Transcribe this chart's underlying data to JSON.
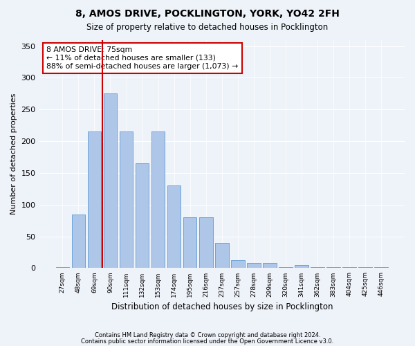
{
  "title1": "8, AMOS DRIVE, POCKLINGTON, YORK, YO42 2FH",
  "title2": "Size of property relative to detached houses in Pocklington",
  "xlabel": "Distribution of detached houses by size in Pocklington",
  "ylabel": "Number of detached properties",
  "categories": [
    "27sqm",
    "48sqm",
    "69sqm",
    "90sqm",
    "111sqm",
    "132sqm",
    "153sqm",
    "174sqm",
    "195sqm",
    "216sqm",
    "237sqm",
    "257sqm",
    "278sqm",
    "299sqm",
    "320sqm",
    "341sqm",
    "362sqm",
    "383sqm",
    "404sqm",
    "425sqm",
    "446sqm"
  ],
  "values": [
    2,
    85,
    215,
    275,
    215,
    165,
    215,
    130,
    80,
    80,
    40,
    12,
    8,
    8,
    2,
    5,
    2,
    2,
    2,
    2,
    2
  ],
  "bar_color": "#aec6e8",
  "bar_edge_color": "#5b9bd5",
  "vline_x": 2.5,
  "vline_color": "#cc0000",
  "annotation_text": "8 AMOS DRIVE: 75sqm\n← 11% of detached houses are smaller (133)\n88% of semi-detached houses are larger (1,073) →",
  "annotation_box_color": "#ffffff",
  "annotation_box_edge": "#cc0000",
  "background_color": "#eef2f9",
  "footer1": "Contains HM Land Registry data © Crown copyright and database right 2024.",
  "footer2": "Contains public sector information licensed under the Open Government Licence v3.0.",
  "ylim": [
    0,
    360
  ],
  "yticks": [
    0,
    50,
    100,
    150,
    200,
    250,
    300,
    350
  ]
}
